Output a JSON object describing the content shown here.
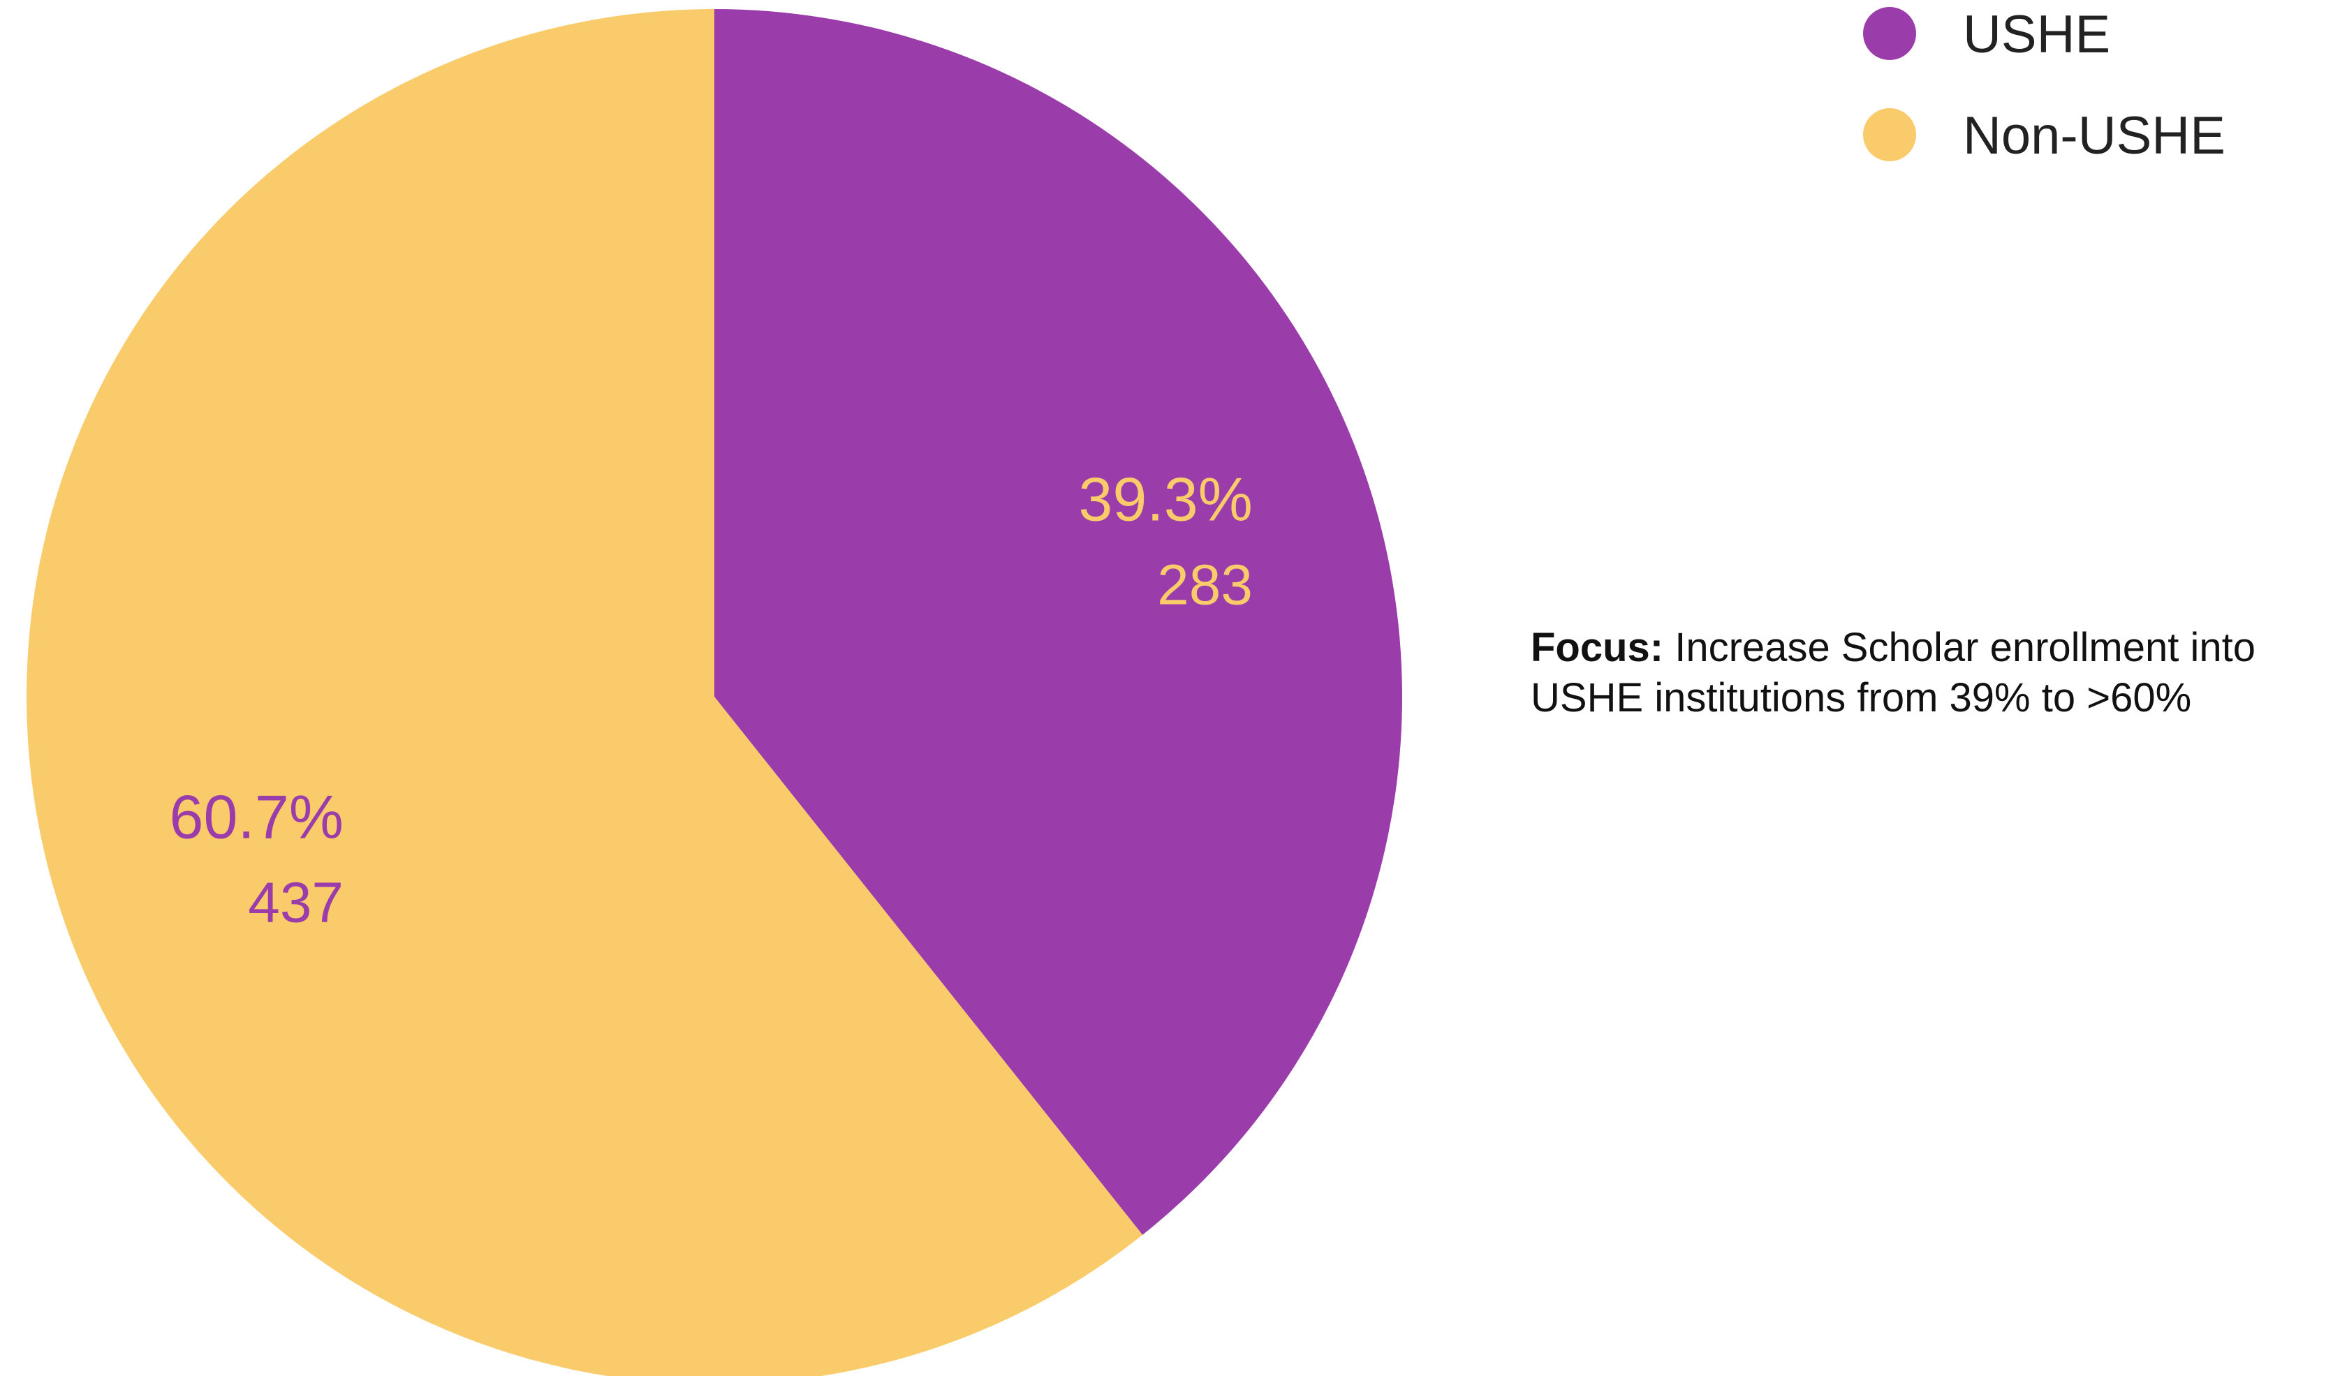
{
  "chart_data": {
    "type": "pie",
    "slices": [
      {
        "label": "USHE",
        "value": 283,
        "percent_label": "39.3%",
        "value_label": "283",
        "color": "#9A3DAA",
        "label_color": "#F9CB6A"
      },
      {
        "label": "Non-USHE",
        "value": 437,
        "percent_label": "60.7%",
        "value_label": "437",
        "color": "#F9CB6A",
        "label_color": "#9A3DAA"
      }
    ],
    "legend_position": "top-right",
    "start": "top, clockwise"
  },
  "note": {
    "bold": "Focus:",
    "text": " Increase Scholar enrollment into USHE institutions from 39% to >60%"
  }
}
